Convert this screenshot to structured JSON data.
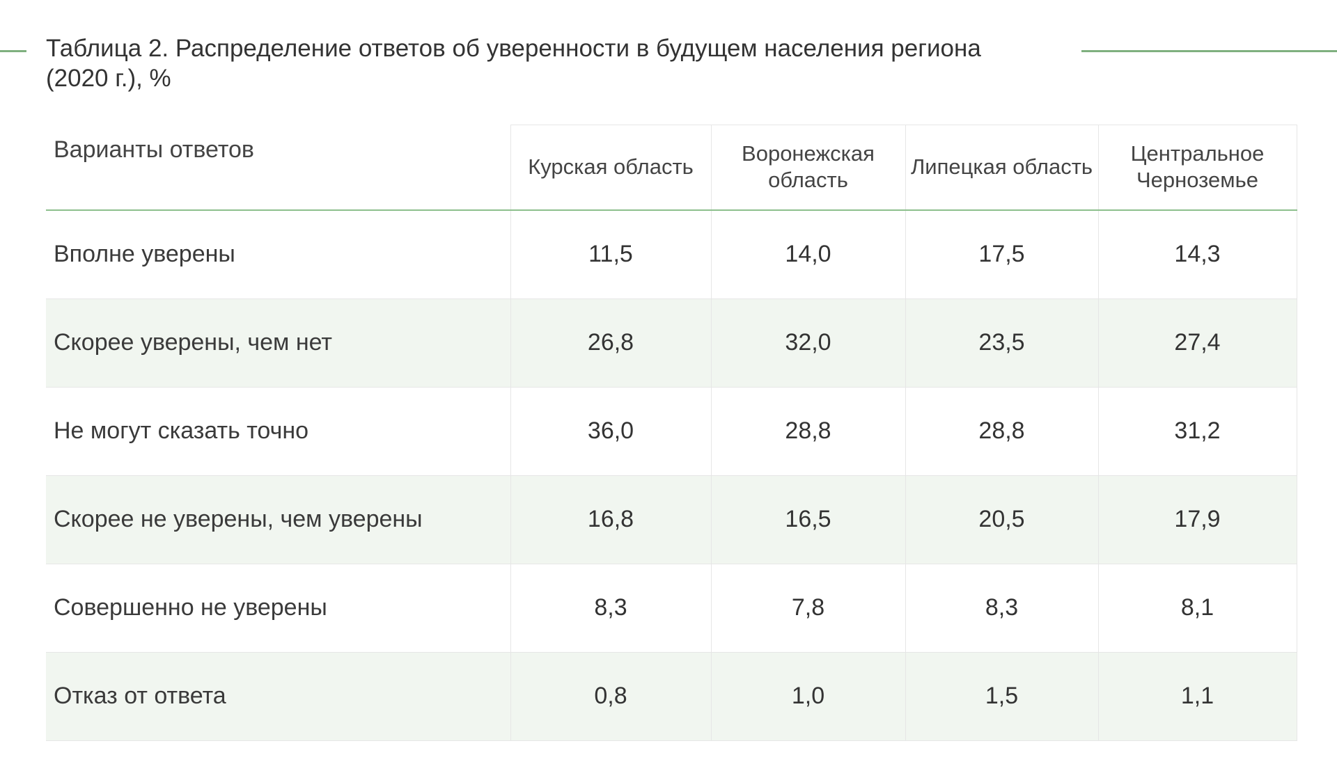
{
  "caption": {
    "title": "Таблица 2. Распределение ответов об уверенности в будущем населения региона (2020 г.), %"
  },
  "table": {
    "headers": {
      "answer": "Варианты ответов",
      "col1": "Курская область",
      "col2": "Воронежская область",
      "col3": "Липецкая область",
      "col4": "Центральное Черноземье"
    },
    "rows": [
      {
        "label": "Вполне уверены",
        "v1": "11,5",
        "v2": "14,0",
        "v3": "17,5",
        "v4": "14,3"
      },
      {
        "label": "Скорее уверены, чем нет",
        "v1": "26,8",
        "v2": "32,0",
        "v3": "23,5",
        "v4": "27,4"
      },
      {
        "label": "Не могут сказать точно",
        "v1": "36,0",
        "v2": "28,8",
        "v3": "28,8",
        "v4": "31,2"
      },
      {
        "label": "Скорее не уверены, чем уверены",
        "v1": "16,8",
        "v2": "16,5",
        "v3": "20,5",
        "v4": "17,9"
      },
      {
        "label": "Совершенно не уверены",
        "v1": "8,3",
        "v2": "7,8",
        "v3": "8,3",
        "v4": "8,1"
      },
      {
        "label": "Отказ от ответа",
        "v1": "0,8",
        "v2": "1,0",
        "v3": "1,5",
        "v4": "1,1"
      }
    ]
  },
  "colors": {
    "accent_rule": "#7fb07f",
    "row_shade": "#f1f6f0",
    "text": "#333333"
  }
}
